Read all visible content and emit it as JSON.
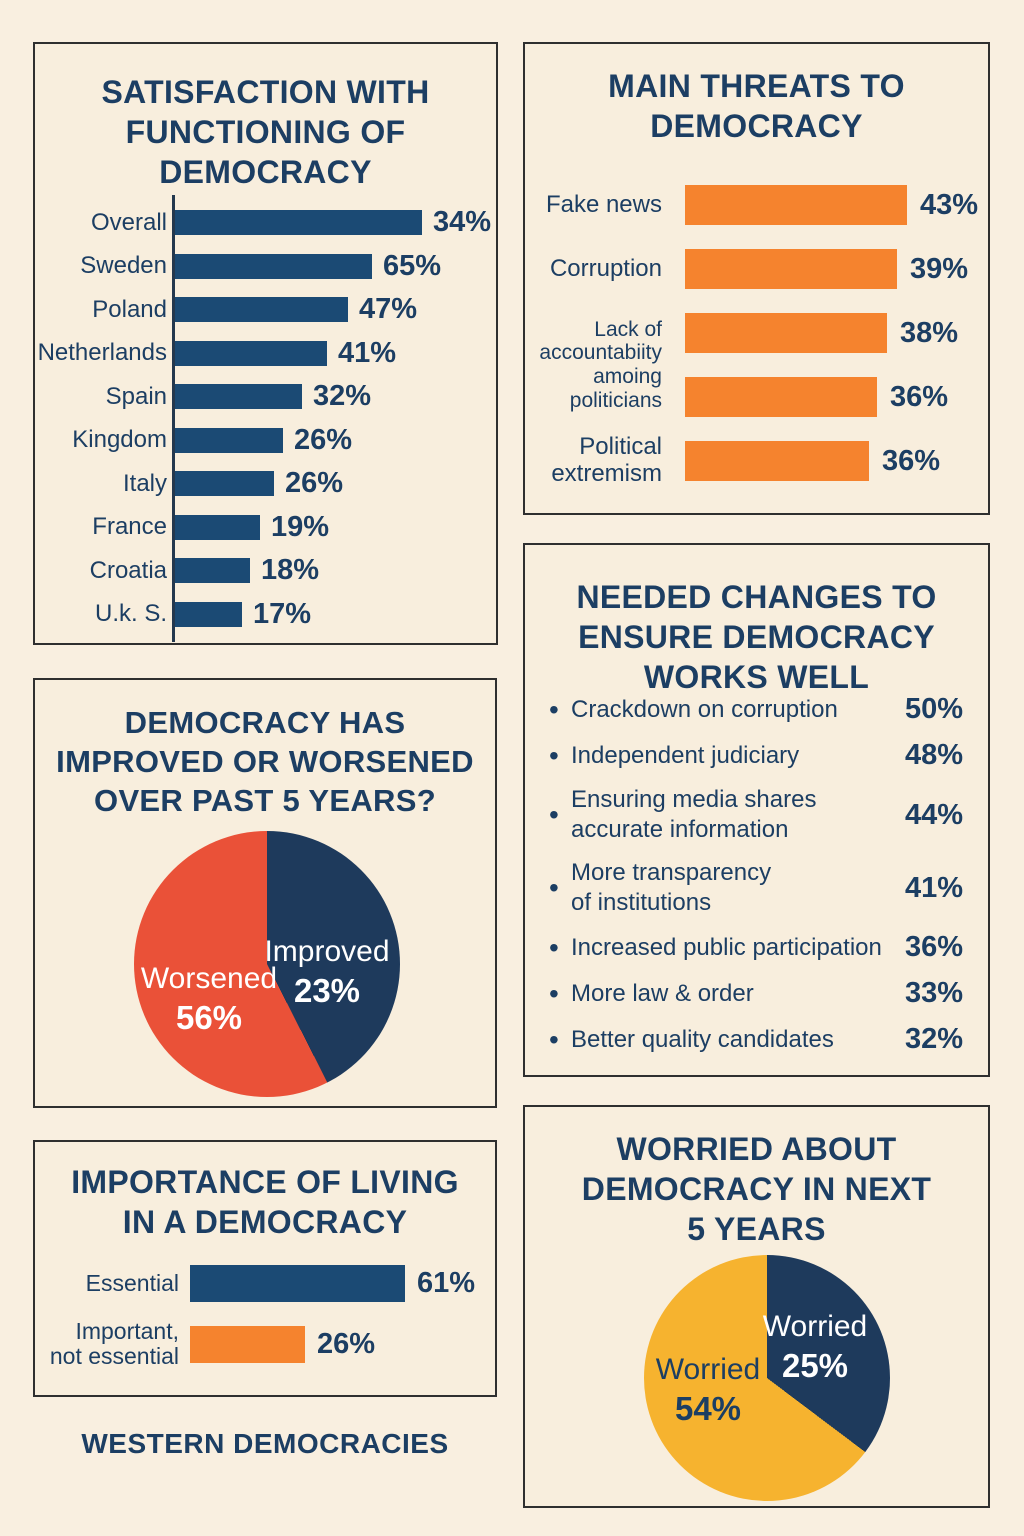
{
  "colors": {
    "background": "#f9efe0",
    "panel_border": "#2f2f2f",
    "navy_text": "#1c3e63",
    "bar_navy": "#1b4a74",
    "bar_orange": "#f5832e",
    "pie_navy": "#1e3a5c",
    "pie_red_orange": "#ea5138",
    "pie_yellow": "#f6b32f"
  },
  "footer": {
    "label": "WESTERN DEMOCRACIES"
  },
  "chart_data": [
    {
      "id": "satisfaction",
      "type": "bar",
      "title": "SATISFACTION WITH\nFUNCTIONING OF\nDEMOCRACY",
      "categories": [
        "Overall",
        "Sweden",
        "Poland",
        "Netherlands",
        "Spain",
        "Kingdom",
        "Italy",
        "France",
        "Croatia",
        "U.k. S."
      ],
      "values": [
        34,
        65,
        47,
        41,
        32,
        26,
        26,
        19,
        18,
        17
      ],
      "value_labels": [
        "34%",
        "65%",
        "47%",
        "41%",
        "32%",
        "26%",
        "26%",
        "19%",
        "18%",
        "17%"
      ],
      "bar_color": "#1b4a74",
      "bar_fractions": [
        1.0,
        0.798,
        0.7,
        0.615,
        0.514,
        0.437,
        0.401,
        0.344,
        0.304,
        0.271
      ],
      "note": "bar lengths as drawn are not proportional to labeled values"
    },
    {
      "id": "threats",
      "type": "bar",
      "title": "MAIN THREATS TO\nDEMOCRACY",
      "categories": [
        "Fake news",
        "Corruption",
        "Lack of\naccountabiity\namoing\npoliticians",
        "Political\nextremism"
      ],
      "values": [
        43,
        39,
        38,
        36,
        36
      ],
      "value_labels": [
        "43%",
        "39%",
        "38%",
        "36%",
        "36%"
      ],
      "bar_color": "#f5832e",
      "bar_fractions": [
        1.0,
        0.955,
        0.91,
        0.865,
        0.829
      ],
      "note": "third category label spans the 38% and 36% bars"
    },
    {
      "id": "improved_worsened",
      "type": "pie",
      "title": "DEMOCRACY HAS\nIMPROVED OR WORSENED\nOVER PAST 5 YEARS?",
      "slices": [
        {
          "label": "Improved",
          "value": 23,
          "value_label": "23%",
          "color": "#1e3a5c"
        },
        {
          "label": "Worsened",
          "value": 56,
          "value_label": "56%",
          "color": "#ea5138"
        }
      ],
      "drawn_sweep_deg": 153
    },
    {
      "id": "needed_changes",
      "type": "table",
      "title": "NEEDED CHANGES TO\nENSURE DEMOCRACY\nWORKS WELL",
      "bullet": "•",
      "items": [
        {
          "text": "Crackdown on corruption",
          "value": 50,
          "value_label": "50%"
        },
        {
          "text": "Independent judiciary",
          "value": 48,
          "value_label": "48%"
        },
        {
          "text": "Ensuring media shares\naccurate information",
          "value": 44,
          "value_label": "44%"
        },
        {
          "text": "More transparency\nof institutions",
          "value": 41,
          "value_label": "41%"
        },
        {
          "text": "Increased public participation",
          "value": 36,
          "value_label": "36%"
        },
        {
          "text": "More law & order",
          "value": 33,
          "value_label": "33%"
        },
        {
          "text": "Better quality candidates",
          "value": 32,
          "value_label": "32%"
        }
      ]
    },
    {
      "id": "importance",
      "type": "bar",
      "title": "IMPORTANCE OF LIVING\nIN A DEMOCRACY",
      "categories": [
        "Essential",
        "Important,\nnot essential"
      ],
      "values": [
        61,
        26
      ],
      "value_labels": [
        "61%",
        "26%"
      ],
      "bar_colors": [
        "#1b4a74",
        "#f5832e"
      ],
      "bar_fractions": [
        1.0,
        0.535
      ]
    },
    {
      "id": "worried",
      "type": "pie",
      "title": "WORRIED ABOUT\nDEMOCRACY IN NEXT\n5 YEARS",
      "slices": [
        {
          "label": "Worried",
          "value": 25,
          "value_label": "25%",
          "color": "#1e3a5c"
        },
        {
          "label": "Worried",
          "value": 54,
          "value_label": "54%",
          "color": "#f6b32f"
        }
      ],
      "drawn_sweep_deg": 127
    }
  ]
}
